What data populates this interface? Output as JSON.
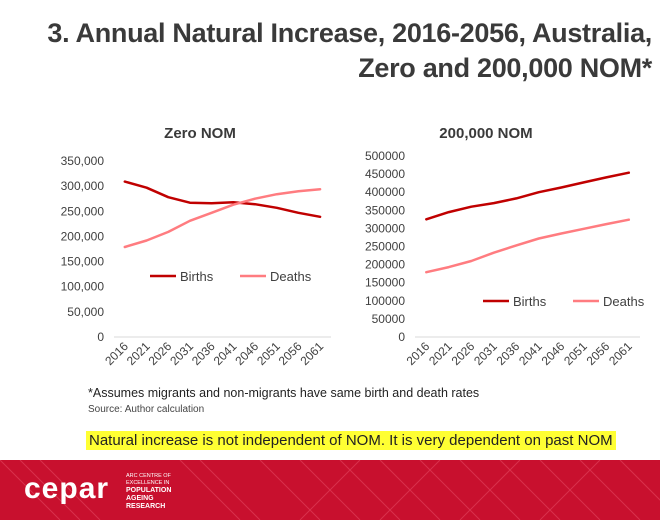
{
  "slide": {
    "title_line1": "3. Annual Natural Increase, 2016-2056, Australia,",
    "title_line2": "Zero and 200,000 NOM*",
    "footnote": "*Assumes migrants and non-migrants have same birth and death rates",
    "source": "Source: Author calculation",
    "highlight": "Natural increase is not independent of NOM. It is very dependent on past NOM"
  },
  "logo": {
    "name": "cepar",
    "tagline": [
      "ARC CENTRE OF",
      "EXCELLENCE IN",
      "POPULATION",
      "AGEING",
      "RESEARCH"
    ]
  },
  "colors": {
    "births": "#c00000",
    "deaths": "#ff7c80",
    "footer_red": "#c8102e"
  },
  "chart_data": [
    {
      "type": "line",
      "title": "Zero NOM",
      "categories": [
        "2016",
        "2021",
        "2026",
        "2031",
        "2036",
        "2041",
        "2046",
        "2051",
        "2056",
        "2061"
      ],
      "series": [
        {
          "name": "Births",
          "values": [
            309000,
            297000,
            278000,
            267000,
            266000,
            268000,
            264000,
            257000,
            247000,
            239000
          ]
        },
        {
          "name": "Deaths",
          "values": [
            179000,
            192000,
            209000,
            231000,
            247000,
            263000,
            275000,
            284000,
            290000,
            294000
          ]
        }
      ],
      "ylim": [
        0,
        350000
      ],
      "yticks": [
        0,
        50000,
        100000,
        150000,
        200000,
        250000,
        300000,
        350000
      ],
      "ytick_labels": [
        "0",
        "50,000",
        "100,000",
        "150,000",
        "200,000",
        "250,000",
        "300,000",
        "350,000"
      ],
      "legend": "center-left",
      "xlabel": "",
      "ylabel": ""
    },
    {
      "type": "line",
      "title": "200,000 NOM",
      "categories": [
        "2016",
        "2021",
        "2026",
        "2031",
        "2036",
        "2041",
        "2046",
        "2051",
        "2056",
        "2061"
      ],
      "series": [
        {
          "name": "Births",
          "values": [
            325000,
            345000,
            360000,
            370000,
            383000,
            400000,
            413000,
            427000,
            441000,
            454000
          ]
        },
        {
          "name": "Deaths",
          "values": [
            179000,
            193000,
            210000,
            233000,
            253000,
            272000,
            286000,
            299000,
            312000,
            324000
          ]
        }
      ],
      "ylim": [
        0,
        500000
      ],
      "yticks": [
        0,
        50000,
        100000,
        150000,
        200000,
        250000,
        300000,
        350000,
        400000,
        450000,
        500000
      ],
      "ytick_labels": [
        "0",
        "50000",
        "100000",
        "150000",
        "200000",
        "250000",
        "300000",
        "350000",
        "400000",
        "450000",
        "500000"
      ],
      "legend": "center-right",
      "xlabel": "",
      "ylabel": ""
    }
  ]
}
